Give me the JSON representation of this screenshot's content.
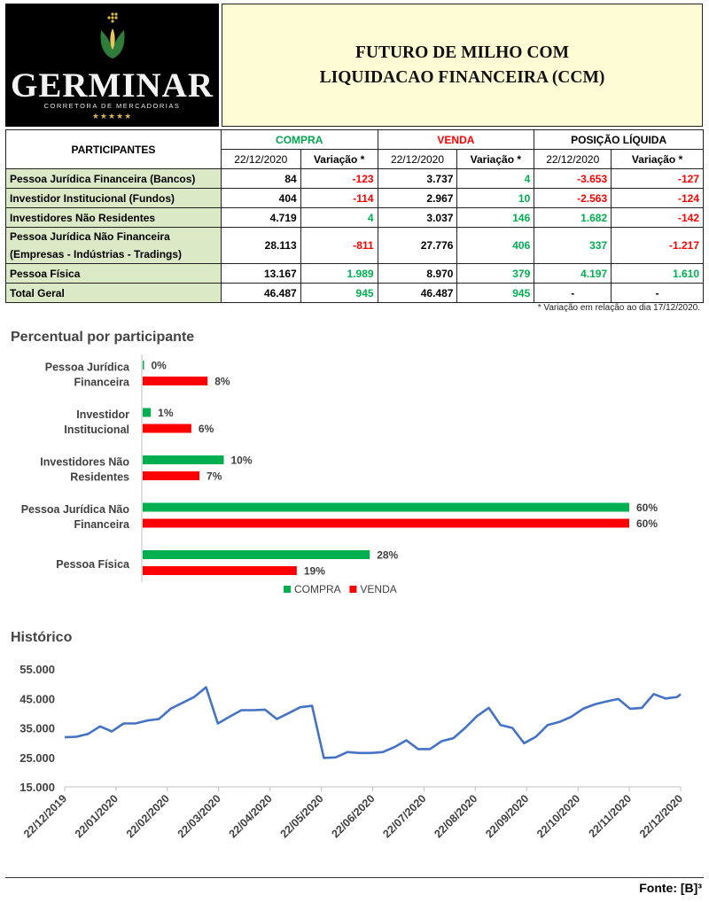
{
  "logo": {
    "brand": "GERMINAR",
    "subtitle": "CORRETORA DE MERCADORIAS",
    "stars": "★★★★★"
  },
  "title": {
    "line1": "FUTURO DE MILHO COM",
    "line2": "LIQUIDACAO FINANCEIRA (CCM)"
  },
  "table": {
    "participants_header": "PARTICIPANTES",
    "group_headers": [
      "COMPRA",
      "VENDA",
      "POSIÇÃO LÍQUIDA"
    ],
    "sub_headers": [
      "22/12/2020",
      "Variação *",
      "22/12/2020",
      "Variação *",
      "22/12/2020",
      "Variação *"
    ],
    "rows": [
      {
        "label": "Pessoa Jurídica Financeira (Bancos)",
        "values": [
          "84",
          "-123",
          "3.737",
          "4",
          "-3.653",
          "-127"
        ]
      },
      {
        "label": "Investidor Institucional (Fundos)",
        "values": [
          "404",
          "-114",
          "2.967",
          "10",
          "-2.563",
          "-124"
        ]
      },
      {
        "label": "Investidores Não Residentes",
        "values": [
          "4.719",
          "4",
          "3.037",
          "146",
          "1.682",
          "-142"
        ]
      },
      {
        "label": "Pessoa Jurídica Não Financeira",
        "label2": "(Empresas - Indústrias - Tradings)",
        "values": [
          "28.113",
          "-811",
          "27.776",
          "406",
          "337",
          "-1.217"
        ]
      },
      {
        "label": "Pessoa Física",
        "values": [
          "13.167",
          "1.989",
          "8.970",
          "379",
          "4.197",
          "1.610"
        ]
      },
      {
        "label": "Total Geral",
        "values": [
          "46.487",
          "945",
          "46.487",
          "945",
          "-",
          "-"
        ]
      }
    ],
    "note": "* Variação em relação ao dia 17/12/2020."
  },
  "colors": {
    "compra": "#00b050",
    "venda": "#ff0000",
    "line": "#4472c4",
    "label_bg": "#dce9c6",
    "title_bg": "#fefcd4"
  },
  "chart_data": [
    {
      "type": "bar",
      "orientation": "horizontal",
      "title": "Percentual por participante",
      "categories": [
        [
          "Pessoa Jurídica",
          "Financeira"
        ],
        [
          "Investidor",
          "Institucional"
        ],
        [
          "Investidores Não",
          "Residentes"
        ],
        [
          "Pessoa Jurídica Não",
          "Financeira"
        ],
        [
          "Pessoa Física"
        ]
      ],
      "series": [
        {
          "name": "COMPRA",
          "values": [
            0,
            1,
            10,
            60,
            28
          ],
          "labels": [
            "0%",
            "1%",
            "10%",
            "60%",
            "28%"
          ]
        },
        {
          "name": "VENDA",
          "values": [
            8,
            6,
            7,
            60,
            19
          ],
          "labels": [
            "8%",
            "6%",
            "7%",
            "60%",
            "19%"
          ]
        }
      ],
      "legend": "bottom",
      "xlim": [
        0,
        60
      ]
    },
    {
      "type": "line",
      "title": "Histórico",
      "x_ticks": [
        "22/12/2019",
        "22/01/2020",
        "22/02/2020",
        "22/03/2020",
        "22/04/2020",
        "22/05/2020",
        "22/06/2020",
        "22/07/2020",
        "22/08/2020",
        "22/09/2020",
        "22/10/2020",
        "22/11/2020",
        "22/12/2020"
      ],
      "y_ticks": [
        "55.000",
        "45.000",
        "35.000",
        "25.000",
        "15.000"
      ],
      "ylim": [
        15000,
        55000
      ],
      "points": [
        [
          "2019-12-22",
          31800
        ],
        [
          "2019-12-29",
          32000
        ],
        [
          "2020-01-05",
          33000
        ],
        [
          "2020-01-12",
          35500
        ],
        [
          "2020-01-19",
          33800
        ],
        [
          "2020-01-26",
          36500
        ],
        [
          "2020-02-02",
          36500
        ],
        [
          "2020-02-09",
          37500
        ],
        [
          "2020-02-16",
          38000
        ],
        [
          "2020-02-23",
          41500
        ],
        [
          "2020-03-01",
          43500
        ],
        [
          "2020-03-08",
          45500
        ],
        [
          "2020-03-15",
          48800
        ],
        [
          "2020-03-22",
          36500
        ],
        [
          "2020-03-29",
          38800
        ],
        [
          "2020-04-05",
          41000
        ],
        [
          "2020-04-12",
          41000
        ],
        [
          "2020-04-19",
          41200
        ],
        [
          "2020-04-26",
          38000
        ],
        [
          "2020-05-03",
          40000
        ],
        [
          "2020-05-10",
          42000
        ],
        [
          "2020-05-17",
          42500
        ],
        [
          "2020-05-24",
          24800
        ],
        [
          "2020-05-31",
          25000
        ],
        [
          "2020-06-07",
          26800
        ],
        [
          "2020-06-14",
          26500
        ],
        [
          "2020-06-21",
          26500
        ],
        [
          "2020-06-28",
          26800
        ],
        [
          "2020-07-05",
          28500
        ],
        [
          "2020-07-12",
          30800
        ],
        [
          "2020-07-19",
          27800
        ],
        [
          "2020-07-26",
          27800
        ],
        [
          "2020-08-02",
          30500
        ],
        [
          "2020-08-09",
          31500
        ],
        [
          "2020-08-16",
          35000
        ],
        [
          "2020-08-23",
          39000
        ],
        [
          "2020-08-30",
          41800
        ],
        [
          "2020-09-06",
          36000
        ],
        [
          "2020-09-13",
          35000
        ],
        [
          "2020-09-20",
          29800
        ],
        [
          "2020-09-27",
          32000
        ],
        [
          "2020-10-04",
          36000
        ],
        [
          "2020-10-11",
          37000
        ],
        [
          "2020-10-18",
          38800
        ],
        [
          "2020-10-25",
          41500
        ],
        [
          "2020-11-01",
          43000
        ],
        [
          "2020-11-08",
          44000
        ],
        [
          "2020-11-15",
          44800
        ],
        [
          "2020-11-22",
          41500
        ],
        [
          "2020-11-29",
          41800
        ],
        [
          "2020-12-06",
          46500
        ],
        [
          "2020-12-13",
          45000
        ],
        [
          "2020-12-20",
          45500
        ],
        [
          "2020-12-22",
          46500
        ]
      ]
    }
  ],
  "footer": {
    "source": "Fonte: [B]³"
  }
}
